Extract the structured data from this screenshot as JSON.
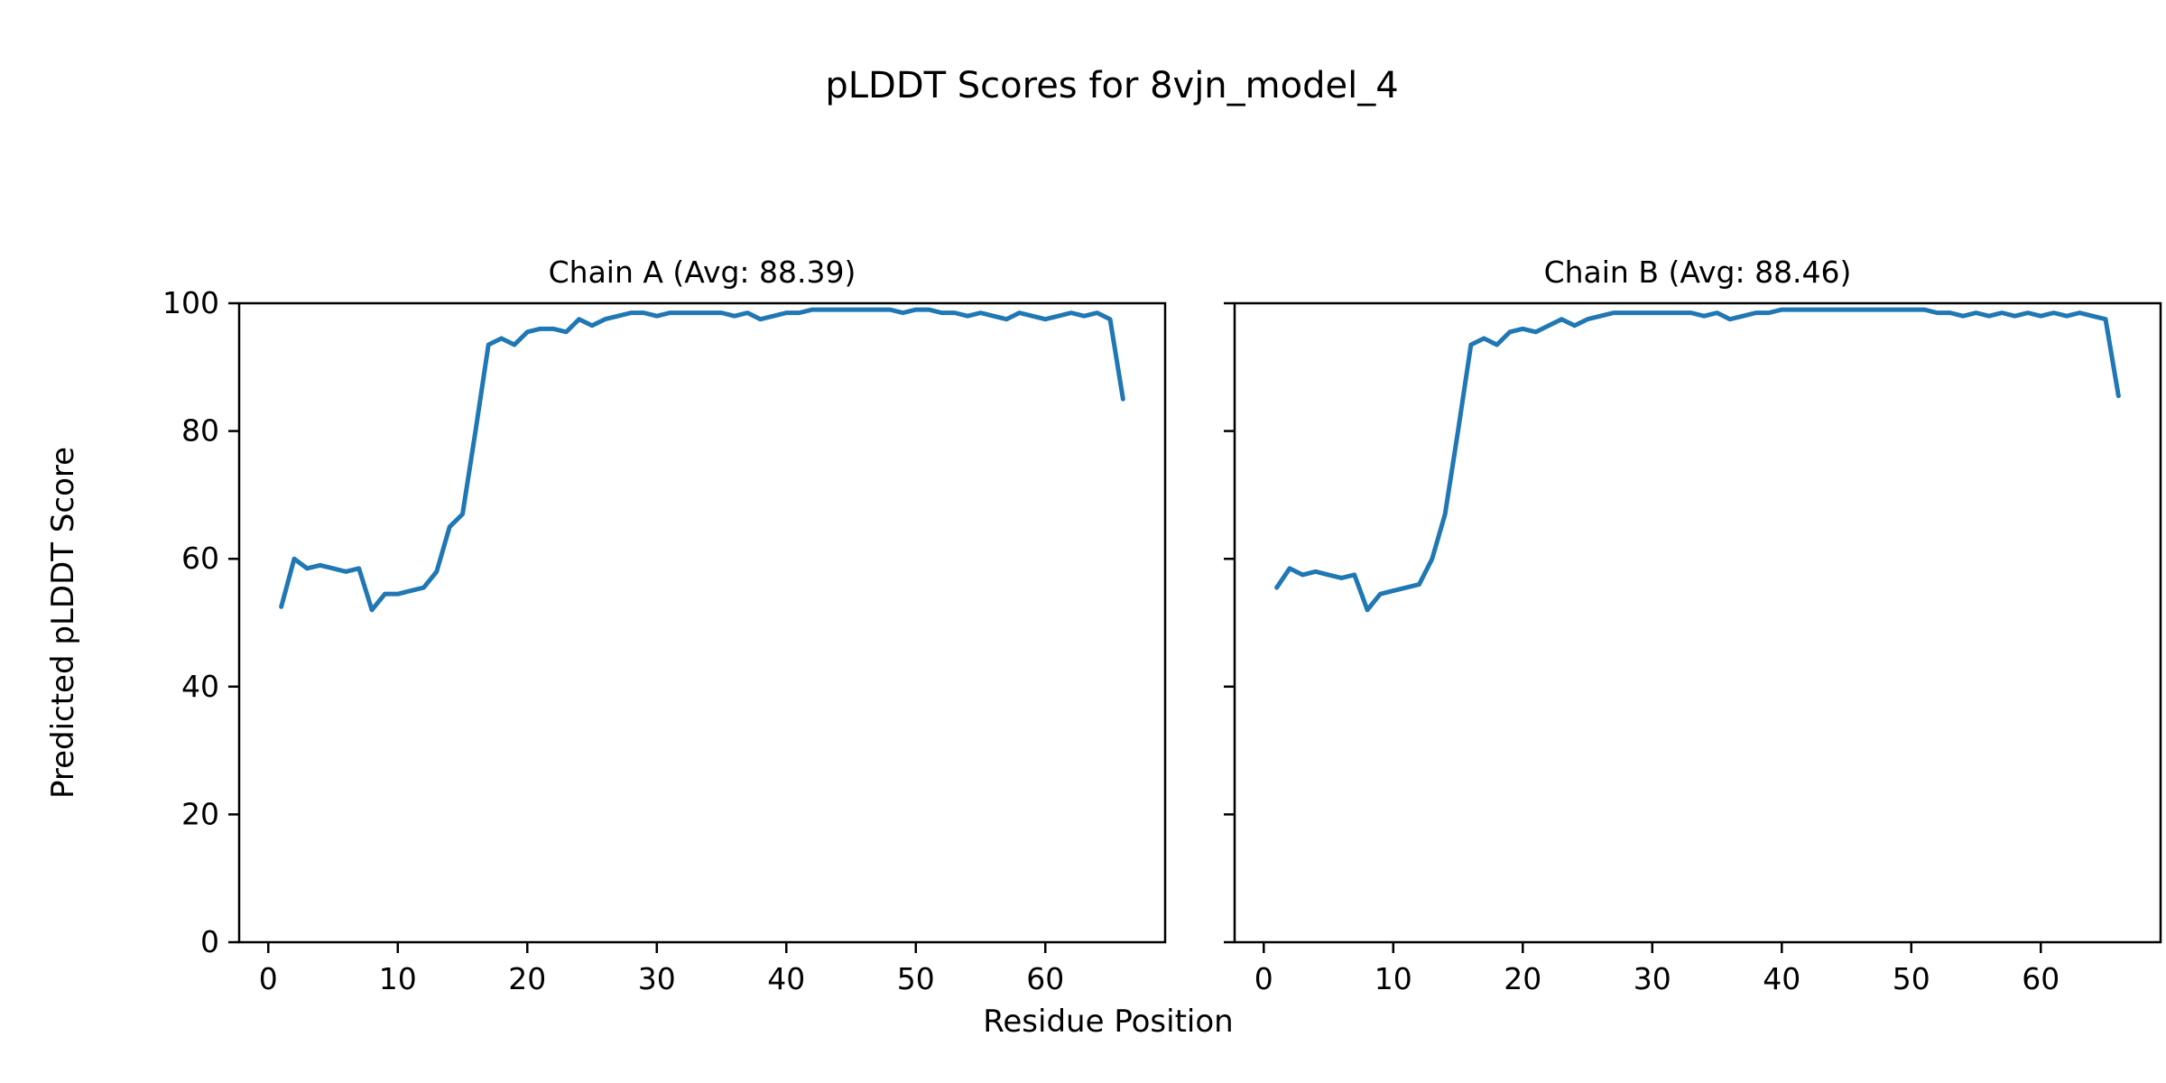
{
  "figure": {
    "title": "pLDDT Scores for 8vjn_model_4",
    "xlabel": "Residue Position",
    "ylabel": "Predicted pLDDT Score"
  },
  "chart_data": [
    {
      "type": "line",
      "title": "Chain A (Avg: 88.39)",
      "avg": 88.39,
      "line_color": "#1f77b4",
      "xlim": [
        -2.25,
        69.25
      ],
      "ylim": [
        0,
        100
      ],
      "xticks": [
        0,
        10,
        20,
        30,
        40,
        50,
        60
      ],
      "yticks": [
        0,
        20,
        40,
        60,
        80,
        100
      ],
      "show_ytick_labels": true,
      "x_start": 1,
      "values": [
        52.5,
        60,
        58.5,
        59,
        58.5,
        58,
        58.5,
        52,
        54.5,
        54.5,
        55,
        55.5,
        58,
        65,
        67,
        80,
        93.5,
        94.5,
        93.5,
        95.5,
        96,
        96,
        95.5,
        97.5,
        96.5,
        97.5,
        98,
        98.5,
        98.5,
        98,
        98.5,
        98.5,
        98.5,
        98.5,
        98.5,
        98,
        98.5,
        97.5,
        98,
        98.5,
        98.5,
        99,
        99,
        99,
        99,
        99,
        99,
        99,
        98.5,
        99,
        99,
        98.5,
        98.5,
        98,
        98.5,
        98,
        97.5,
        98.5,
        98,
        97.5,
        98,
        98.5,
        98,
        98.5,
        97.5,
        85
      ]
    },
    {
      "type": "line",
      "title": "Chain B (Avg: 88.46)",
      "avg": 88.46,
      "line_color": "#1f77b4",
      "xlim": [
        -2.25,
        69.25
      ],
      "ylim": [
        0,
        100
      ],
      "xticks": [
        0,
        10,
        20,
        30,
        40,
        50,
        60
      ],
      "yticks": [
        0,
        20,
        40,
        60,
        80,
        100
      ],
      "show_ytick_labels": false,
      "x_start": 1,
      "values": [
        55.5,
        58.5,
        57.5,
        58,
        57.5,
        57,
        57.5,
        52,
        54.5,
        55,
        55.5,
        56,
        60,
        67,
        80,
        93.5,
        94.5,
        93.5,
        95.5,
        96,
        95.5,
        96.5,
        97.5,
        96.5,
        97.5,
        98,
        98.5,
        98.5,
        98.5,
        98.5,
        98.5,
        98.5,
        98.5,
        98,
        98.5,
        97.5,
        98,
        98.5,
        98.5,
        99,
        99,
        99,
        99,
        99,
        99,
        99,
        99,
        99,
        99,
        99,
        99,
        98.5,
        98.5,
        98,
        98.5,
        98,
        98.5,
        98,
        98.5,
        98,
        98.5,
        98,
        98.5,
        98,
        97.5,
        85.5
      ]
    }
  ]
}
